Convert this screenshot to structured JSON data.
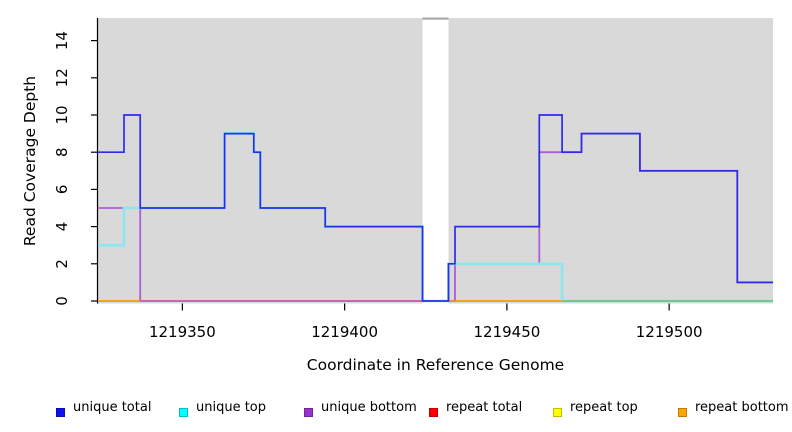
{
  "figure": {
    "background": "#FFFFFF",
    "plot_background": "#D9D9D9"
  },
  "chart_data": {
    "type": "line",
    "style": "step-after-coverage-plot",
    "title": "",
    "xlabel": "Coordinate in Reference Genome",
    "ylabel": "Read Coverage Depth",
    "xlim": [
      1219324,
      1219532
    ],
    "ylim": [
      0,
      15.2
    ],
    "grid": "off",
    "plot_bg": "#D9D9D9",
    "x_ticks": [
      1219350,
      1219400,
      1219450,
      1219500
    ],
    "x_tick_labels": [
      "1219350",
      "1219400",
      "1219450",
      "1219500"
    ],
    "y_ticks": [
      0,
      2,
      4,
      6,
      8,
      10,
      12,
      14
    ],
    "coverage_windows": [
      [
        1219324,
        1219424
      ],
      [
        1219432,
        1219532
      ]
    ],
    "gap": {
      "from": 1219424,
      "to": 1219432,
      "top_bar_color": "#A9A9A9"
    },
    "series": [
      {
        "name": "repeat total",
        "legend_color": "#FF0000",
        "draw_color": "#DD2222",
        "width": 1.2,
        "z": 1,
        "steps": [
          [
            1219324,
            0
          ],
          [
            1219532,
            0
          ]
        ]
      },
      {
        "name": "repeat top",
        "legend_color": "#FFFF00",
        "draw_color": "#F5E626",
        "width": 1.2,
        "z": 1.5,
        "steps": [
          [
            1219324,
            0
          ],
          [
            1219532,
            0
          ]
        ]
      },
      {
        "name": "repeat bottom",
        "legend_color": "#FFA500",
        "draw_color": "#FF9D00",
        "width": 1.2,
        "z": 2,
        "steps": [
          [
            1219324,
            0
          ],
          [
            1219532,
            0
          ]
        ]
      },
      {
        "name": "unique bottom",
        "legend_color": "#9932CC",
        "draw_color": "#AE5CD8",
        "width": 1.8,
        "z": 3,
        "steps": [
          [
            1219324,
            5
          ],
          [
            1219337,
            0
          ],
          [
            1219434,
            2
          ],
          [
            1219460,
            8
          ],
          [
            1219473,
            9
          ],
          [
            1219491,
            7
          ],
          [
            1219521,
            1
          ],
          [
            1219532,
            1
          ]
        ]
      },
      {
        "name": "unique top",
        "legend_color": "#00FFFF",
        "draw_color": "#8BE6EE",
        "width": 2.6,
        "z": 3.5,
        "steps": [
          [
            1219324,
            3
          ],
          [
            1219332,
            5
          ],
          [
            1219363,
            9
          ],
          [
            1219372,
            8
          ],
          [
            1219374,
            5
          ],
          [
            1219394,
            4
          ],
          [
            1219424,
            0
          ],
          [
            1219432,
            2
          ],
          [
            1219467,
            0
          ],
          [
            1219532,
            0
          ]
        ]
      },
      {
        "name": "unique total",
        "legend_color": "#1010EE",
        "draw_color": "#2D2DE8",
        "width": 1.7,
        "z": 5,
        "steps": [
          [
            1219324,
            8
          ],
          [
            1219332,
            10
          ],
          [
            1219337,
            5
          ],
          [
            1219363,
            9
          ],
          [
            1219372,
            8
          ],
          [
            1219374,
            5
          ],
          [
            1219394,
            4
          ],
          [
            1219424,
            0
          ],
          [
            1219432,
            2
          ],
          [
            1219434,
            4
          ],
          [
            1219460,
            10
          ],
          [
            1219467,
            8
          ],
          [
            1219473,
            9
          ],
          [
            1219491,
            7
          ],
          [
            1219521,
            1
          ],
          [
            1219532,
            1
          ]
        ]
      }
    ],
    "zero_line_segments": [
      {
        "from": 1219324,
        "to": 1219337,
        "color": "#FF9D00"
      },
      {
        "from": 1219337,
        "to": 1219424,
        "color": "#DA5FAE"
      },
      {
        "from": 1219432,
        "to": 1219467,
        "color": "#FF9D00"
      },
      {
        "from": 1219467,
        "to": 1219532,
        "color": "#6FBE6F"
      }
    ],
    "legend": [
      {
        "label": "unique total",
        "color": "#1010EE"
      },
      {
        "label": "unique top",
        "color": "#00FFFF"
      },
      {
        "label": "unique bottom",
        "color": "#9932CC"
      },
      {
        "label": "repeat total",
        "color": "#FF0000"
      },
      {
        "label": "repeat top",
        "color": "#FFFF00"
      },
      {
        "label": "repeat bottom",
        "color": "#FFA500"
      }
    ]
  }
}
